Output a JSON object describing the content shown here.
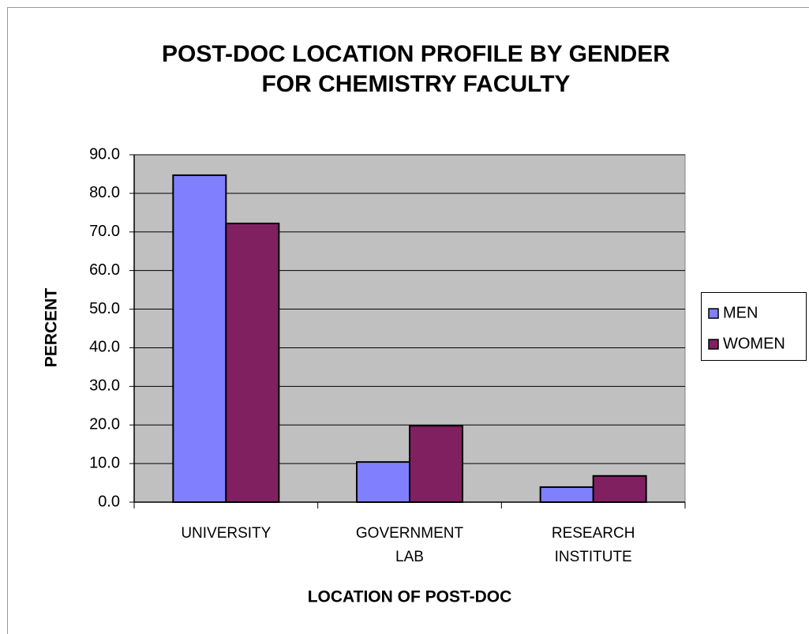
{
  "chart_data": {
    "type": "bar",
    "title": "POST-DOC LOCATION PROFILE BY GENDER FOR CHEMISTRY FACULTY",
    "x_label": "LOCATION OF POST-DOC",
    "y_label": "PERCENT",
    "categories": [
      "UNIVERSITY",
      "GOVERNMENT LAB",
      "RESEARCH INSTITUTE"
    ],
    "series": [
      {
        "name": "MEN",
        "color": "#8080ff",
        "values": [
          84.7,
          10.4,
          3.9
        ]
      },
      {
        "name": "WOMEN",
        "color": "#802060",
        "values": [
          72.2,
          19.8,
          6.8
        ]
      }
    ],
    "ylim": [
      0,
      90
    ],
    "yticks": [
      {
        "value": 0,
        "label": "0.0"
      },
      {
        "value": 10,
        "label": "10.0"
      },
      {
        "value": 20,
        "label": "20.0"
      },
      {
        "value": 30,
        "label": "30.0"
      },
      {
        "value": 40,
        "label": "40.0"
      },
      {
        "value": 50,
        "label": "50.0"
      },
      {
        "value": 60,
        "label": "60.0"
      },
      {
        "value": 70,
        "label": "70.0"
      },
      {
        "value": 80,
        "label": "80.0"
      },
      {
        "value": 90,
        "label": "90.0"
      }
    ],
    "grid": true,
    "legend": "right"
  }
}
